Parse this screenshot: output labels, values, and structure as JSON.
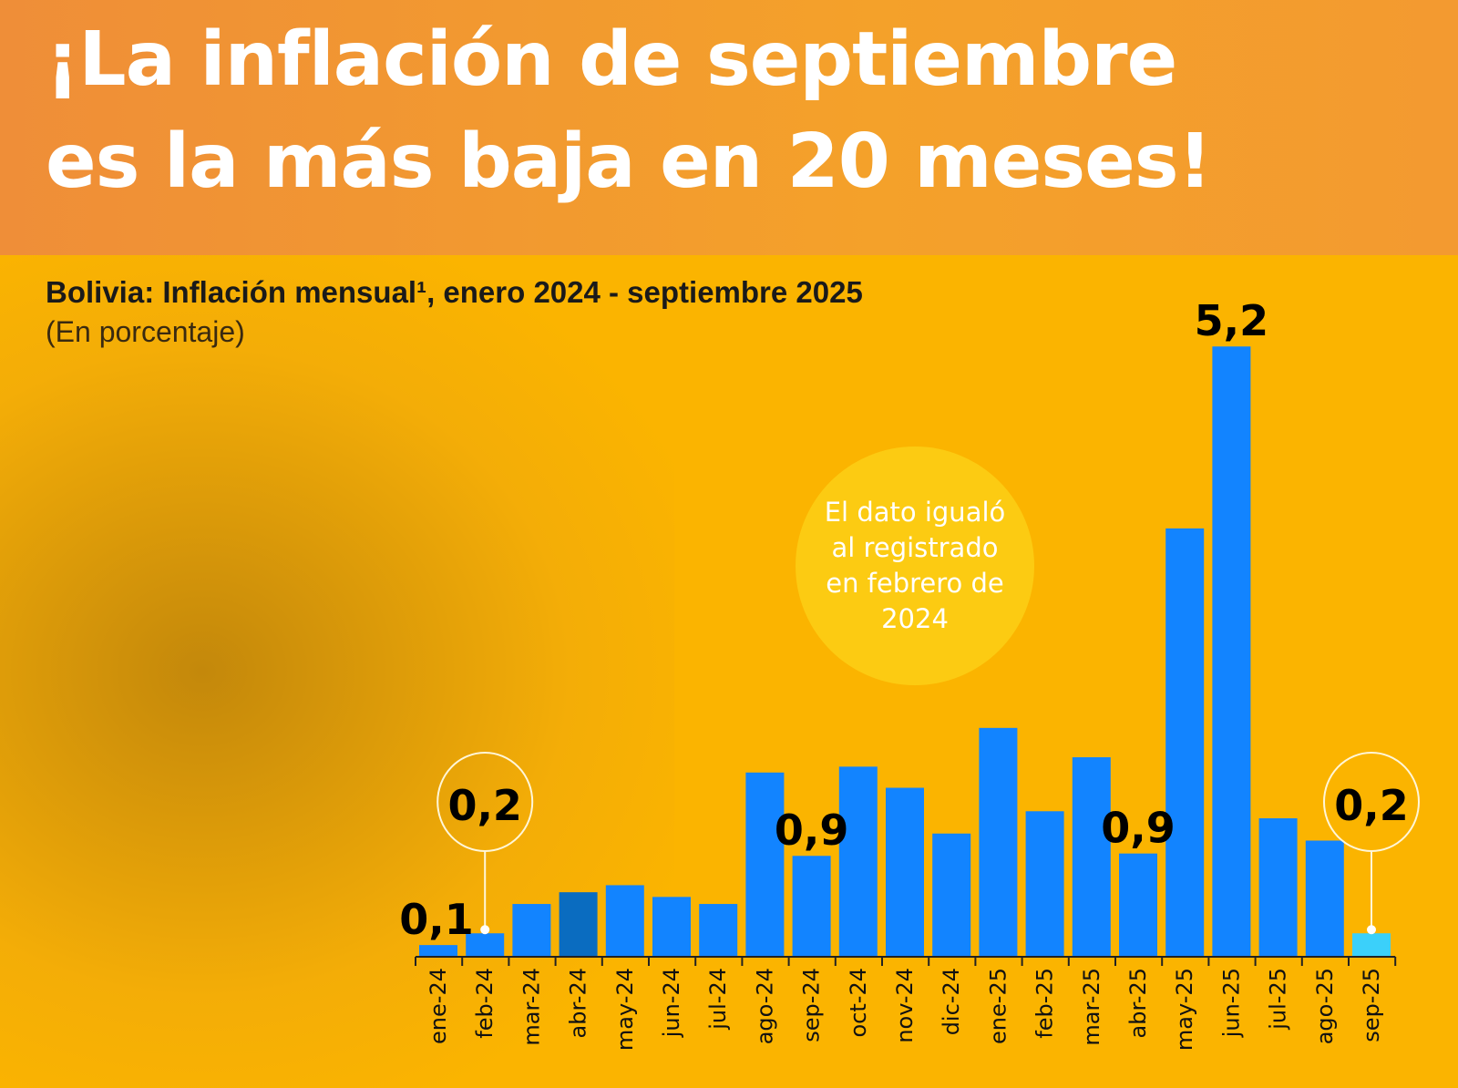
{
  "header": {
    "title_line1": "¡La inflación de septiembre",
    "title_line2": "es la más baja en 20 meses!"
  },
  "callout": {
    "text": "El dato igualó al registrado en febrero de 2024"
  },
  "chart_data": {
    "type": "bar",
    "title": "Bolivia: Inflación mensual¹, enero 2024 - septiembre 2025",
    "subtitle": "(En porcentaje)",
    "categories": [
      "ene-24",
      "feb-24",
      "mar-24",
      "abr-24",
      "may-24",
      "jun-24",
      "jul-24",
      "ago-24",
      "sep-24",
      "oct-24",
      "nov-24",
      "dic-24",
      "ene-25",
      "feb-25",
      "mar-25",
      "abr-25",
      "may-25",
      "jun-25",
      "jul-25",
      "ago-25",
      "sep-25"
    ],
    "values": [
      0.1,
      0.2,
      0.45,
      0.55,
      0.61,
      0.51,
      0.45,
      1.57,
      0.86,
      1.62,
      1.44,
      1.05,
      1.95,
      1.24,
      1.7,
      0.88,
      3.65,
      5.2,
      1.18,
      0.99,
      0.2
    ],
    "data_labels": [
      {
        "category": "ene-24",
        "text": "0,1"
      },
      {
        "category": "feb-24",
        "text": "0,2",
        "highlight": true
      },
      {
        "category": "sep-24",
        "text": "0,9"
      },
      {
        "category": "abr-25",
        "text": "0,9"
      },
      {
        "category": "jun-25",
        "text": "5,2"
      },
      {
        "category": "sep-25",
        "text": "0,2",
        "highlight": true
      }
    ],
    "ylim": [
      0,
      5.5
    ],
    "grid": false,
    "colors": {
      "bar": "#1284FF",
      "bar_abr24": "#0A6CC0",
      "bar_last": "#3BD0FA",
      "background": "#FBB400",
      "header": "#EF8E38"
    }
  }
}
